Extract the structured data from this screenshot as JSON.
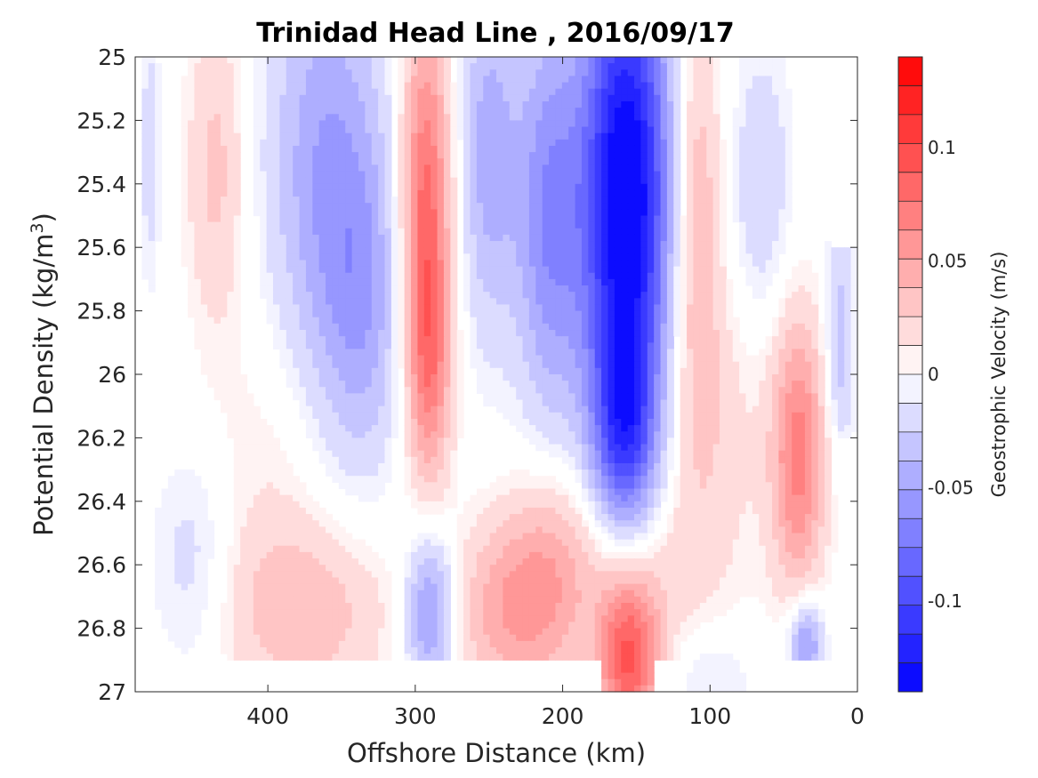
{
  "chart_data": {
    "type": "heatmap",
    "title": "Trinidad Head Line , 2016/09/17",
    "xlabel": "Offshore Distance (km)",
    "ylabel": "Potential Density (kg/m",
    "ylabel_sup": "3",
    "ylabel_close": ")",
    "colorbar_label": "Geostrophic Velocity (m/s)",
    "xlim": [
      490,
      0
    ],
    "ylim": [
      25,
      27
    ],
    "x_reversed": true,
    "y_reversed": true,
    "xticks": [
      400,
      300,
      200,
      100,
      0
    ],
    "xtick_labels": [
      "400",
      "300",
      "200",
      "100",
      "0"
    ],
    "yticks": [
      25,
      25.2,
      25.4,
      25.6,
      25.8,
      26,
      26.2,
      26.4,
      26.6,
      26.8,
      27
    ],
    "ytick_labels": [
      "25",
      "25.2",
      "25.4",
      "25.6",
      "25.8",
      "26",
      "26.2",
      "26.4",
      "26.6",
      "26.8",
      "27"
    ],
    "clim": [
      -0.14,
      0.14
    ],
    "colorbar_levels": 22,
    "colorbar_ticks": [
      0.1,
      0.05,
      0,
      -0.05,
      -0.1
    ],
    "colorbar_tick_labels": [
      "0.1",
      "0.05",
      "0",
      "-0.05",
      "-0.1"
    ],
    "colormap": {
      "negative": "#0000ff",
      "zero": "#ffffff",
      "positive": "#ff0000"
    },
    "features": [
      {
        "x": 435,
        "y": 25.35,
        "sx": 14,
        "sy": 0.35,
        "v": 0.03
      },
      {
        "x": 480,
        "y": 25.3,
        "sx": 5,
        "sy": 0.3,
        "v": -0.02
      },
      {
        "x": 360,
        "y": 25.35,
        "sx": 28,
        "sy": 0.5,
        "v": -0.05
      },
      {
        "x": 335,
        "y": 25.8,
        "sx": 20,
        "sy": 0.35,
        "v": -0.035
      },
      {
        "x": 293,
        "y": 25.5,
        "sx": 12,
        "sy": 0.45,
        "v": 0.085
      },
      {
        "x": 290,
        "y": 26.0,
        "sx": 10,
        "sy": 0.25,
        "v": 0.04
      },
      {
        "x": 250,
        "y": 25.3,
        "sx": 14,
        "sy": 0.4,
        "v": -0.045
      },
      {
        "x": 210,
        "y": 25.5,
        "sx": 16,
        "sy": 0.45,
        "v": -0.06
      },
      {
        "x": 157,
        "y": 25.45,
        "sx": 22,
        "sy": 0.55,
        "v": -0.15
      },
      {
        "x": 158,
        "y": 26.2,
        "sx": 15,
        "sy": 0.22,
        "v": -0.07
      },
      {
        "x": 110,
        "y": 25.5,
        "sx": 12,
        "sy": 0.45,
        "v": 0.045
      },
      {
        "x": 65,
        "y": 25.4,
        "sx": 14,
        "sy": 0.3,
        "v": -0.025
      },
      {
        "x": 40,
        "y": 26.25,
        "sx": 13,
        "sy": 0.3,
        "v": 0.07
      },
      {
        "x": 12,
        "y": 25.9,
        "sx": 7,
        "sy": 0.25,
        "v": -0.035
      },
      {
        "x": 450,
        "y": 26.6,
        "sx": 20,
        "sy": 0.25,
        "v": -0.02
      },
      {
        "x": 375,
        "y": 26.75,
        "sx": 40,
        "sy": 0.2,
        "v": 0.035
      },
      {
        "x": 400,
        "y": 26.3,
        "sx": 30,
        "sy": 0.35,
        "v": 0.012
      },
      {
        "x": 290,
        "y": 26.75,
        "sx": 12,
        "sy": 0.18,
        "v": -0.06
      },
      {
        "x": 240,
        "y": 26.75,
        "sx": 25,
        "sy": 0.2,
        "v": 0.04
      },
      {
        "x": 210,
        "y": 26.65,
        "sx": 20,
        "sy": 0.25,
        "v": 0.03
      },
      {
        "x": 155,
        "y": 26.9,
        "sx": 15,
        "sy": 0.18,
        "v": 0.09
      },
      {
        "x": 160,
        "y": 26.6,
        "sx": 45,
        "sy": 0.2,
        "v": 0.025
      },
      {
        "x": 100,
        "y": 26.15,
        "sx": 25,
        "sy": 0.3,
        "v": 0.02
      },
      {
        "x": 35,
        "y": 26.85,
        "sx": 8,
        "sy": 0.1,
        "v": -0.06
      },
      {
        "x": 100,
        "y": 26.95,
        "sx": 20,
        "sy": 0.1,
        "v": -0.015
      }
    ]
  }
}
